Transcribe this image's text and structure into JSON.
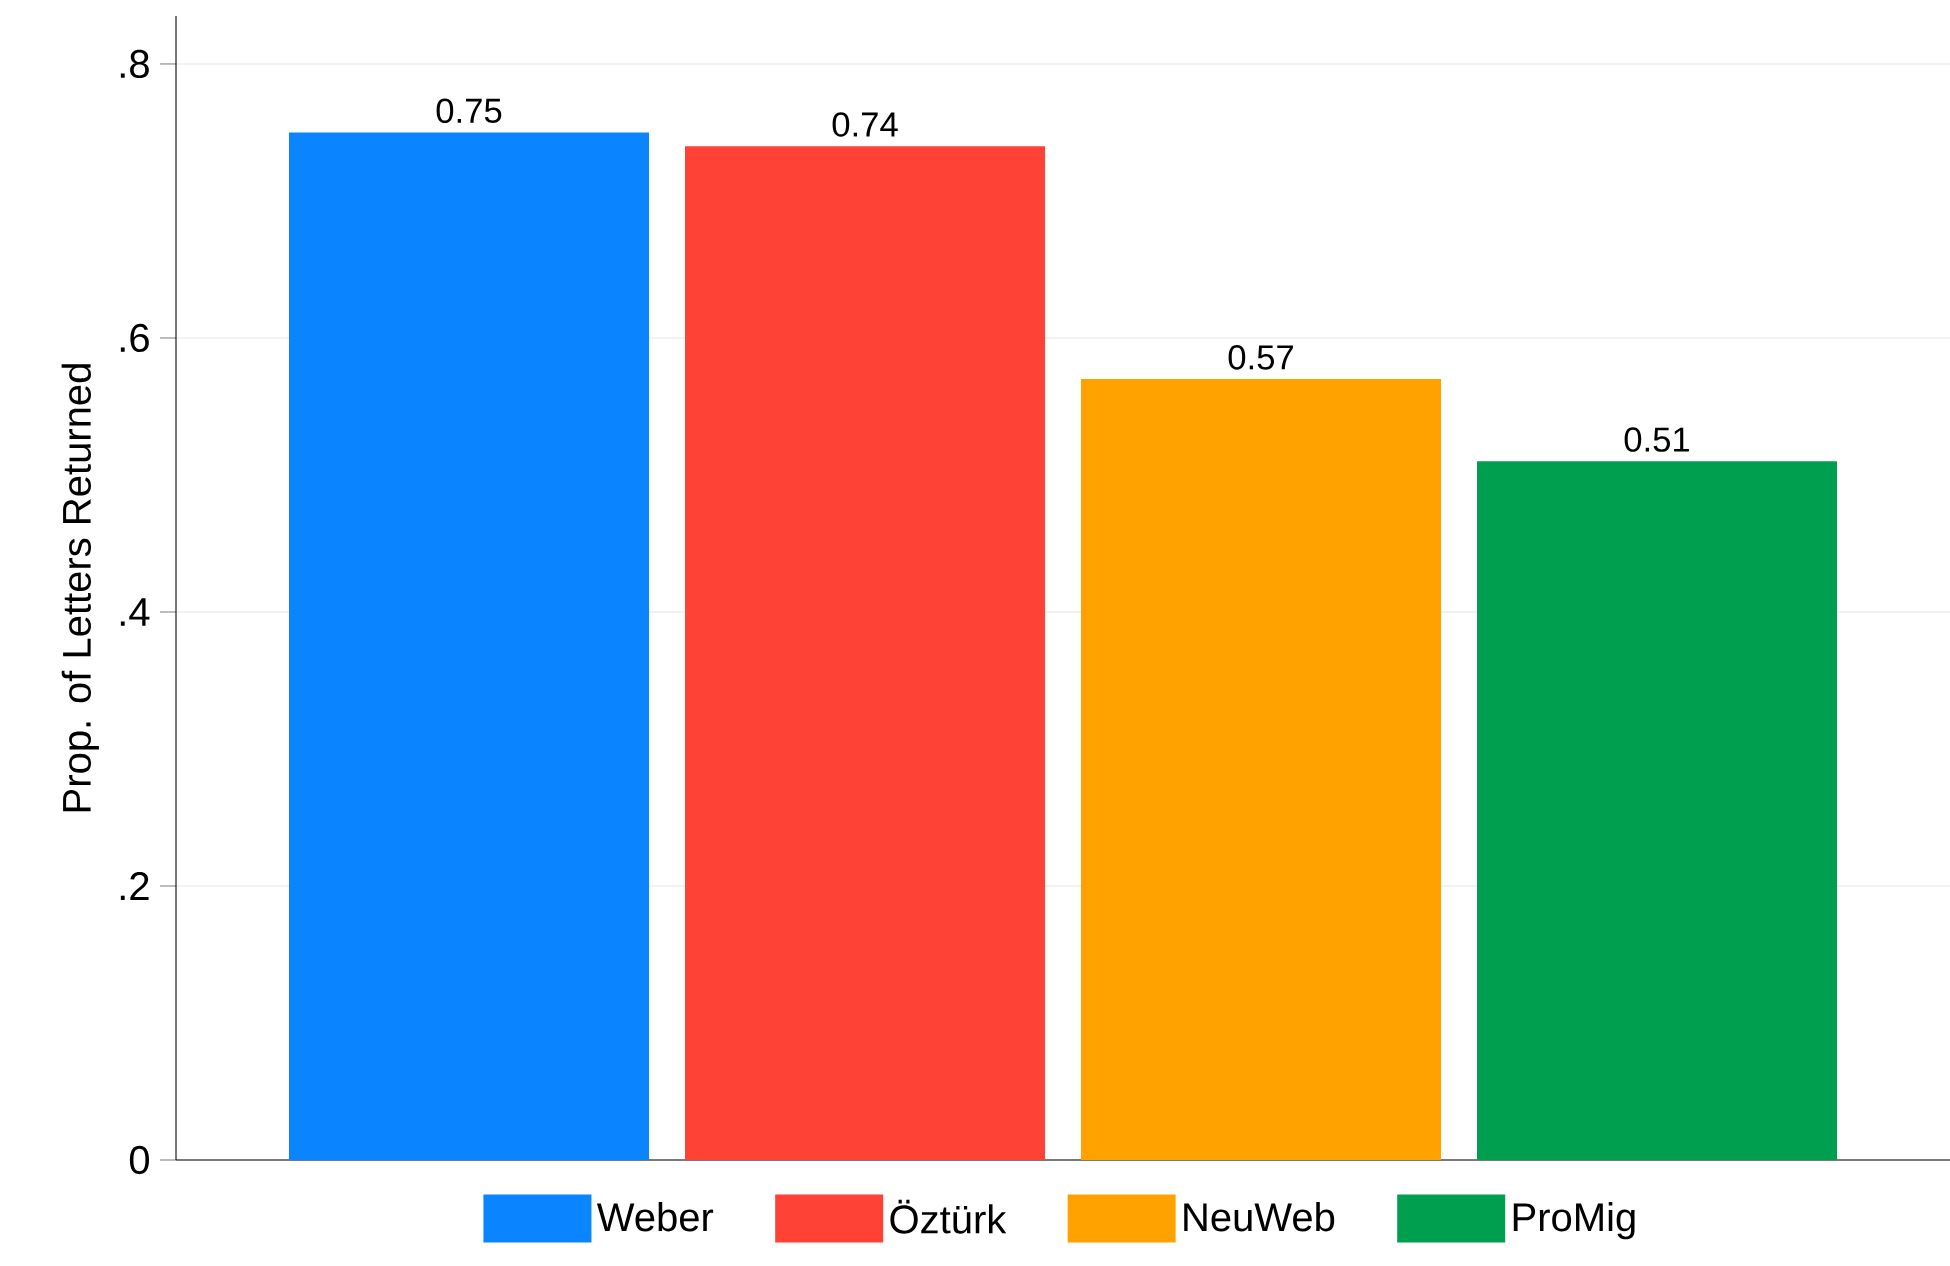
{
  "chart_data": {
    "type": "bar",
    "categories": [
      null
    ],
    "ylabel": "Prop. of Letters Returned",
    "ylim": [
      0,
      0.835
    ],
    "yticks": [
      0,
      {
        "value": 0.2,
        "label": ".2"
      },
      {
        "value": 0.4,
        "label": ".4"
      },
      {
        "value": 0.6,
        "label": ".6"
      },
      {
        "value": 0.8,
        "label": ".8"
      }
    ],
    "grid": "y",
    "legend": "bottom",
    "data_labels": true,
    "series": [
      {
        "name": "Weber",
        "color": "#0a84ff",
        "values": [
          0.75
        ]
      },
      {
        "name": "Öztürk",
        "color": "#ff4136",
        "values": [
          0.74
        ]
      },
      {
        "name": "NeuWeb",
        "color": "#ffa200",
        "values": [
          0.57
        ]
      },
      {
        "name": "ProMig",
        "color": "#009e4f",
        "values": [
          0.51
        ]
      }
    ]
  }
}
